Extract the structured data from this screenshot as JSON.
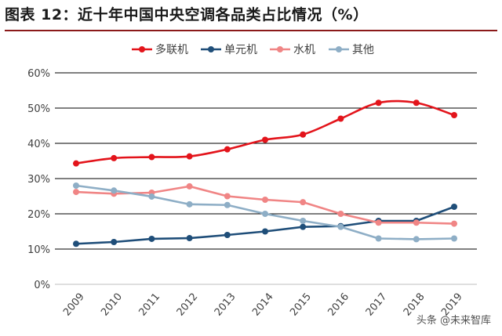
{
  "title": "图表 12：近十年中国中央空调各品类占比情况（%）",
  "watermark": "头条 @未来智库",
  "chart_data": {
    "type": "line",
    "categories": [
      "2009",
      "2010",
      "2011",
      "2012",
      "2013",
      "2014",
      "2015",
      "2016",
      "2017",
      "2018",
      "2019"
    ],
    "ylim": [
      0,
      60
    ],
    "yticks": [
      "0%",
      "10%",
      "20%",
      "30%",
      "40%",
      "50%",
      "60%"
    ],
    "grid": true,
    "legend_position": "top",
    "series": [
      {
        "name": "多联机",
        "color": "#e3141b",
        "smooth": true,
        "values": [
          34.3,
          35.8,
          36.1,
          36.3,
          38.3,
          41.0,
          42.5,
          47.0,
          51.5,
          51.5,
          48.0
        ]
      },
      {
        "name": "单元机",
        "color": "#1f4e79",
        "smooth": false,
        "values": [
          11.5,
          12.0,
          12.9,
          13.1,
          14.0,
          15.0,
          16.3,
          16.5,
          18.0,
          18.0,
          22.0
        ]
      },
      {
        "name": "水机",
        "color": "#f08585",
        "smooth": false,
        "values": [
          26.2,
          25.7,
          26.0,
          27.8,
          25.0,
          24.0,
          23.3,
          20.0,
          17.5,
          17.5,
          17.2
        ]
      },
      {
        "name": "其他",
        "color": "#8eaec6",
        "smooth": false,
        "values": [
          28.0,
          26.6,
          24.9,
          22.7,
          22.5,
          20.0,
          18.0,
          16.3,
          13.0,
          12.8,
          13.0
        ]
      }
    ]
  }
}
